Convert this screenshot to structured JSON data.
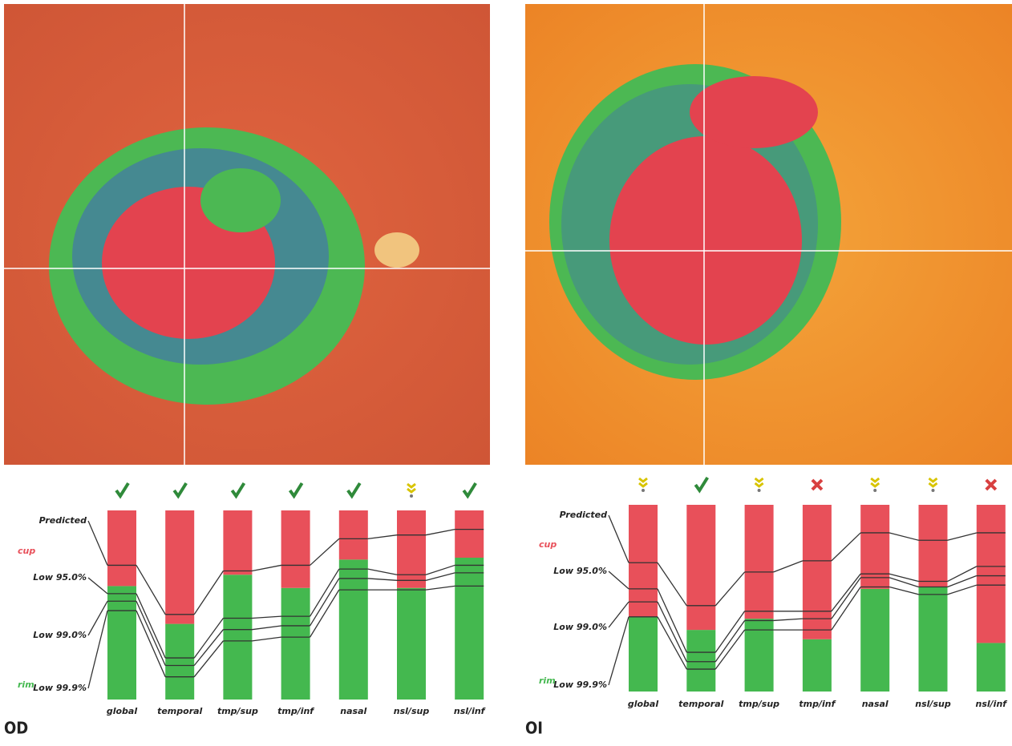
{
  "chart_data": [
    {
      "type": "bar",
      "title": "OD",
      "categories": [
        "global",
        "temporal",
        "tmp/sup",
        "tmp/inf",
        "nasal",
        "nsl/sup",
        "nsl/inf"
      ],
      "ylim": [
        0,
        100
      ],
      "series": [
        {
          "name": "rim",
          "color": "#44b84f",
          "values": [
            60,
            40,
            66,
            59,
            74,
            59,
            75
          ]
        },
        {
          "name": "cup",
          "color": "#e8505a",
          "values": [
            40,
            60,
            34,
            41,
            26,
            41,
            25
          ]
        }
      ],
      "lines": [
        {
          "name": "Predicted",
          "values": [
            71,
            45,
            68,
            71,
            85,
            87,
            90
          ]
        },
        {
          "name": "Low 95.0%",
          "values": [
            56,
            22,
            43,
            44,
            69,
            66,
            71
          ]
        },
        {
          "name": "Low 99.0%",
          "values": [
            52,
            18,
            37,
            39,
            64,
            63,
            67
          ]
        },
        {
          "name": "Low 99.9%",
          "values": [
            47,
            12,
            31,
            33,
            58,
            58,
            60
          ]
        }
      ],
      "markers": [
        "check",
        "check",
        "check",
        "check",
        "check",
        "caution",
        "check"
      ]
    },
    {
      "type": "bar",
      "title": "OI",
      "categories": [
        "global",
        "temporal",
        "tmp/sup",
        "tmp/inf",
        "nasal",
        "nsl/sup",
        "nsl/inf"
      ],
      "ylim": [
        0,
        100
      ],
      "series": [
        {
          "name": "rim",
          "color": "#44b84f",
          "values": [
            40,
            33,
            39,
            28,
            55,
            56,
            26
          ]
        },
        {
          "name": "cup",
          "color": "#e8505a",
          "values": [
            60,
            67,
            61,
            72,
            45,
            44,
            74
          ]
        }
      ],
      "lines": [
        {
          "name": "Predicted",
          "values": [
            69,
            46,
            64,
            70,
            85,
            81,
            85
          ]
        },
        {
          "name": "Low 95.0%",
          "values": [
            55,
            21,
            43,
            43,
            63,
            59,
            67
          ]
        },
        {
          "name": "Low 99.0%",
          "values": [
            48,
            16,
            38,
            39,
            61,
            56,
            62
          ]
        },
        {
          "name": "Low 99.9%",
          "values": [
            40,
            12,
            33,
            33,
            56,
            52,
            57
          ]
        }
      ],
      "markers": [
        "caution",
        "check",
        "caution",
        "cross",
        "caution",
        "caution",
        "cross"
      ]
    }
  ]
}
